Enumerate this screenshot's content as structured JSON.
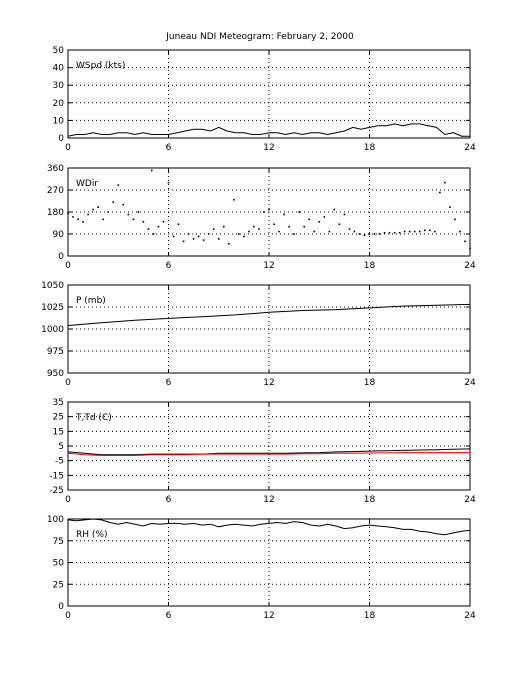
{
  "title": "Juneau NDI Meteogram:  February  2, 2000",
  "chart_data": [
    {
      "type": "line",
      "panel_label": "WSpd (kts)",
      "xlim": [
        0,
        24
      ],
      "ylim": [
        0,
        50
      ],
      "xticks": [
        0,
        6,
        12,
        18,
        24
      ],
      "yticks": [
        0,
        10,
        20,
        30,
        40,
        50
      ],
      "grid": true,
      "series": [
        {
          "color": "#000000",
          "style": "line",
          "x": [
            0,
            0.5,
            1,
            1.5,
            2,
            2.5,
            3,
            3.5,
            4,
            4.5,
            5,
            5.5,
            6,
            6.5,
            7,
            7.5,
            8,
            8.5,
            9,
            9.5,
            10,
            10.5,
            11,
            11.5,
            12,
            12.5,
            13,
            13.5,
            14,
            14.5,
            15,
            15.5,
            16,
            16.5,
            17,
            17.5,
            18,
            18.5,
            19,
            19.5,
            20,
            20.5,
            21,
            21.5,
            22,
            22.5,
            23,
            23.5,
            24
          ],
          "y": [
            1,
            2,
            2,
            3,
            2,
            2,
            3,
            3,
            2,
            3,
            2,
            2,
            2,
            3,
            4,
            5,
            5,
            4,
            6,
            4,
            3,
            3,
            2,
            2,
            3,
            3,
            2,
            3,
            2,
            3,
            3,
            2,
            3,
            4,
            6,
            5,
            6,
            7,
            7,
            8,
            7,
            8,
            8,
            7,
            6,
            2,
            3,
            1,
            1
          ]
        }
      ]
    },
    {
      "type": "scatter",
      "panel_label": "WDir",
      "xlim": [
        0,
        24
      ],
      "ylim": [
        0,
        360
      ],
      "xticks": [
        0,
        6,
        12,
        18,
        24
      ],
      "yticks": [
        0,
        90,
        180,
        270,
        360
      ],
      "grid": true,
      "series": [
        {
          "color": "#000000",
          "style": "dots",
          "x": [
            0,
            0.3,
            0.6,
            0.9,
            1.2,
            1.5,
            1.8,
            2.1,
            2.4,
            2.7,
            3.0,
            3.3,
            3.6,
            3.9,
            4.2,
            4.5,
            4.8,
            5.0,
            5.1,
            5.4,
            5.7,
            6.0,
            6.3,
            6.6,
            6.9,
            7.2,
            7.5,
            7.8,
            8.1,
            8.4,
            8.7,
            9.0,
            9.3,
            9.6,
            9.9,
            10.2,
            10.5,
            10.8,
            11.1,
            11.4,
            11.7,
            12.0,
            12.3,
            12.6,
            12.9,
            13.2,
            13.5,
            13.8,
            14.1,
            14.4,
            14.7,
            15.0,
            15.3,
            15.6,
            15.9,
            16.2,
            16.5,
            16.8,
            17.1,
            17.4,
            17.7,
            18.0,
            18.3,
            18.6,
            18.9,
            19.2,
            19.5,
            19.8,
            20.1,
            20.4,
            20.7,
            21.0,
            21.3,
            21.6,
            21.9,
            22.2,
            22.5,
            22.8,
            23.1,
            23.4,
            23.7,
            24.0
          ],
          "y": [
            175,
            160,
            150,
            140,
            170,
            190,
            200,
            150,
            180,
            220,
            290,
            210,
            170,
            150,
            180,
            140,
            110,
            350,
            90,
            120,
            140,
            300,
            80,
            130,
            60,
            90,
            70,
            80,
            65,
            90,
            110,
            70,
            120,
            50,
            230,
            90,
            80,
            100,
            120,
            110,
            180,
            190,
            130,
            100,
            170,
            120,
            90,
            180,
            120,
            150,
            100,
            140,
            160,
            100,
            190,
            130,
            170,
            110,
            100,
            90,
            85,
            90,
            90,
            90,
            95,
            95,
            95,
            95,
            100,
            100,
            100,
            100,
            105,
            105,
            100,
            260,
            300,
            200,
            150,
            100,
            60,
            30
          ]
        }
      ]
    },
    {
      "type": "line",
      "panel_label": "P (mb)",
      "xlim": [
        0,
        24
      ],
      "ylim": [
        950,
        1050
      ],
      "xticks": [
        0,
        6,
        12,
        18,
        24
      ],
      "yticks": [
        950,
        975,
        1000,
        1025,
        1050
      ],
      "grid": true,
      "series": [
        {
          "color": "#000000",
          "style": "line",
          "x": [
            0,
            2,
            4,
            6,
            8,
            10,
            12,
            14,
            16,
            18,
            20,
            22,
            24
          ],
          "y": [
            1004,
            1007,
            1010,
            1012,
            1014,
            1016,
            1019,
            1021,
            1022,
            1024,
            1026,
            1027,
            1028
          ]
        }
      ]
    },
    {
      "type": "line",
      "panel_label": "T,Td (C)",
      "xlim": [
        0,
        24
      ],
      "ylim": [
        -25,
        35
      ],
      "xticks": [
        0,
        6,
        12,
        18,
        24
      ],
      "yticks": [
        -25,
        -15,
        -5,
        5,
        15,
        25,
        35
      ],
      "grid": true,
      "series": [
        {
          "color": "#000000",
          "style": "line",
          "x": [
            0,
            1,
            2,
            3,
            4,
            5,
            6,
            7,
            8,
            9,
            10,
            11,
            12,
            13,
            14,
            15,
            16,
            17,
            18,
            19,
            20,
            21,
            22,
            23,
            24
          ],
          "y": [
            1,
            0,
            -1,
            -1,
            -1,
            -0.5,
            -0.5,
            -0.5,
            -0.5,
            0,
            0,
            0,
            0,
            0,
            0.3,
            0.5,
            1,
            1.2,
            1.5,
            1.8,
            2,
            2.3,
            2.5,
            2.8,
            3
          ]
        },
        {
          "color": "#ff0000",
          "style": "line",
          "x": [
            0,
            1,
            2,
            3,
            4,
            5,
            6,
            7,
            8,
            9,
            10,
            11,
            12,
            13,
            14,
            15,
            16,
            17,
            18,
            19,
            20,
            21,
            22,
            23,
            24
          ],
          "y": [
            0,
            -1,
            -1.5,
            -1.5,
            -1.5,
            -1,
            -1,
            -1,
            -0.5,
            -0.5,
            -0.5,
            -0.5,
            -0.5,
            -0.5,
            -0.3,
            -0.3,
            0,
            0,
            0.2,
            0.3,
            0.5,
            0.5,
            0.5,
            0.5,
            0.5
          ]
        }
      ]
    },
    {
      "type": "line",
      "panel_label": "RH (%)",
      "xlim": [
        0,
        24
      ],
      "ylim": [
        0,
        100
      ],
      "xticks": [
        0,
        6,
        12,
        18,
        24
      ],
      "yticks": [
        0,
        25,
        50,
        75,
        100
      ],
      "grid": true,
      "series": [
        {
          "color": "#000000",
          "style": "line",
          "x": [
            0,
            0.5,
            1,
            1.5,
            2,
            2.5,
            3,
            3.5,
            4,
            4.5,
            5,
            5.5,
            6,
            6.5,
            7,
            7.5,
            8,
            8.5,
            9,
            9.5,
            10,
            10.5,
            11,
            11.5,
            12,
            12.5,
            13,
            13.5,
            14,
            14.5,
            15,
            15.5,
            16,
            16.5,
            17,
            17.5,
            18,
            18.5,
            19,
            19.5,
            20,
            20.5,
            21,
            21.5,
            22,
            22.5,
            23,
            23.5,
            24
          ],
          "y": [
            99,
            98,
            99,
            100,
            99,
            96,
            94,
            96,
            94,
            92,
            95,
            94,
            95,
            95,
            94,
            95,
            93,
            94,
            91,
            93,
            94,
            93,
            92,
            94,
            95,
            96,
            95,
            97,
            96,
            93,
            92,
            94,
            92,
            89,
            90,
            92,
            93,
            92,
            91,
            90,
            88,
            88,
            86,
            85,
            83,
            82,
            84,
            86,
            87
          ]
        }
      ]
    }
  ]
}
